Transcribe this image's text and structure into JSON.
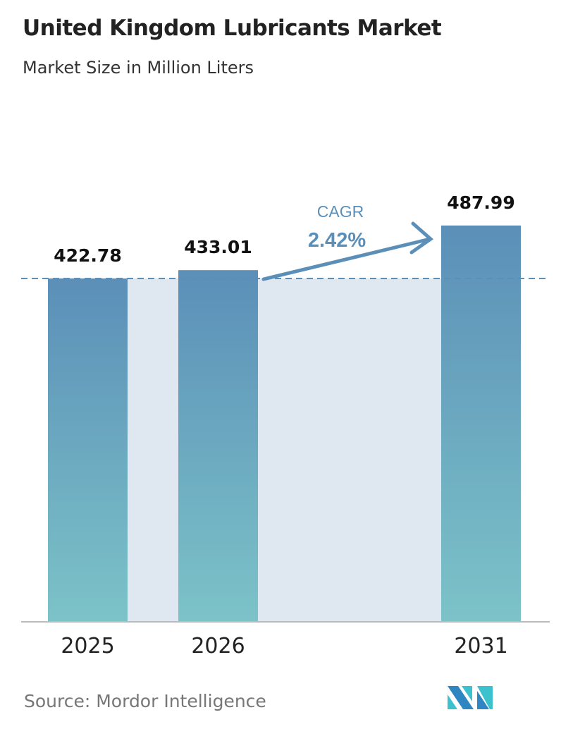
{
  "chart_data": {
    "type": "bar",
    "title": "United Kingdom Lubricants Market",
    "subtitle": "Market Size in Million Liters",
    "categories": [
      "2025",
      "2026",
      "2031"
    ],
    "values": [
      422.78,
      433.01,
      487.99
    ],
    "data_labels": [
      "422.78",
      "433.01",
      "487.99"
    ],
    "ylim": [
      0,
      765
    ],
    "grid": false,
    "annotation": {
      "label": "CAGR",
      "value": "2.42%"
    },
    "colors": {
      "bar_top": "#5b8fb8",
      "bar_bottom": "#7cc3c8",
      "band": "#dfe8f0",
      "accent": "#5b8fb8"
    }
  },
  "source": "Source:  Mordor Intelligence",
  "logo": "Mordor Intelligence"
}
